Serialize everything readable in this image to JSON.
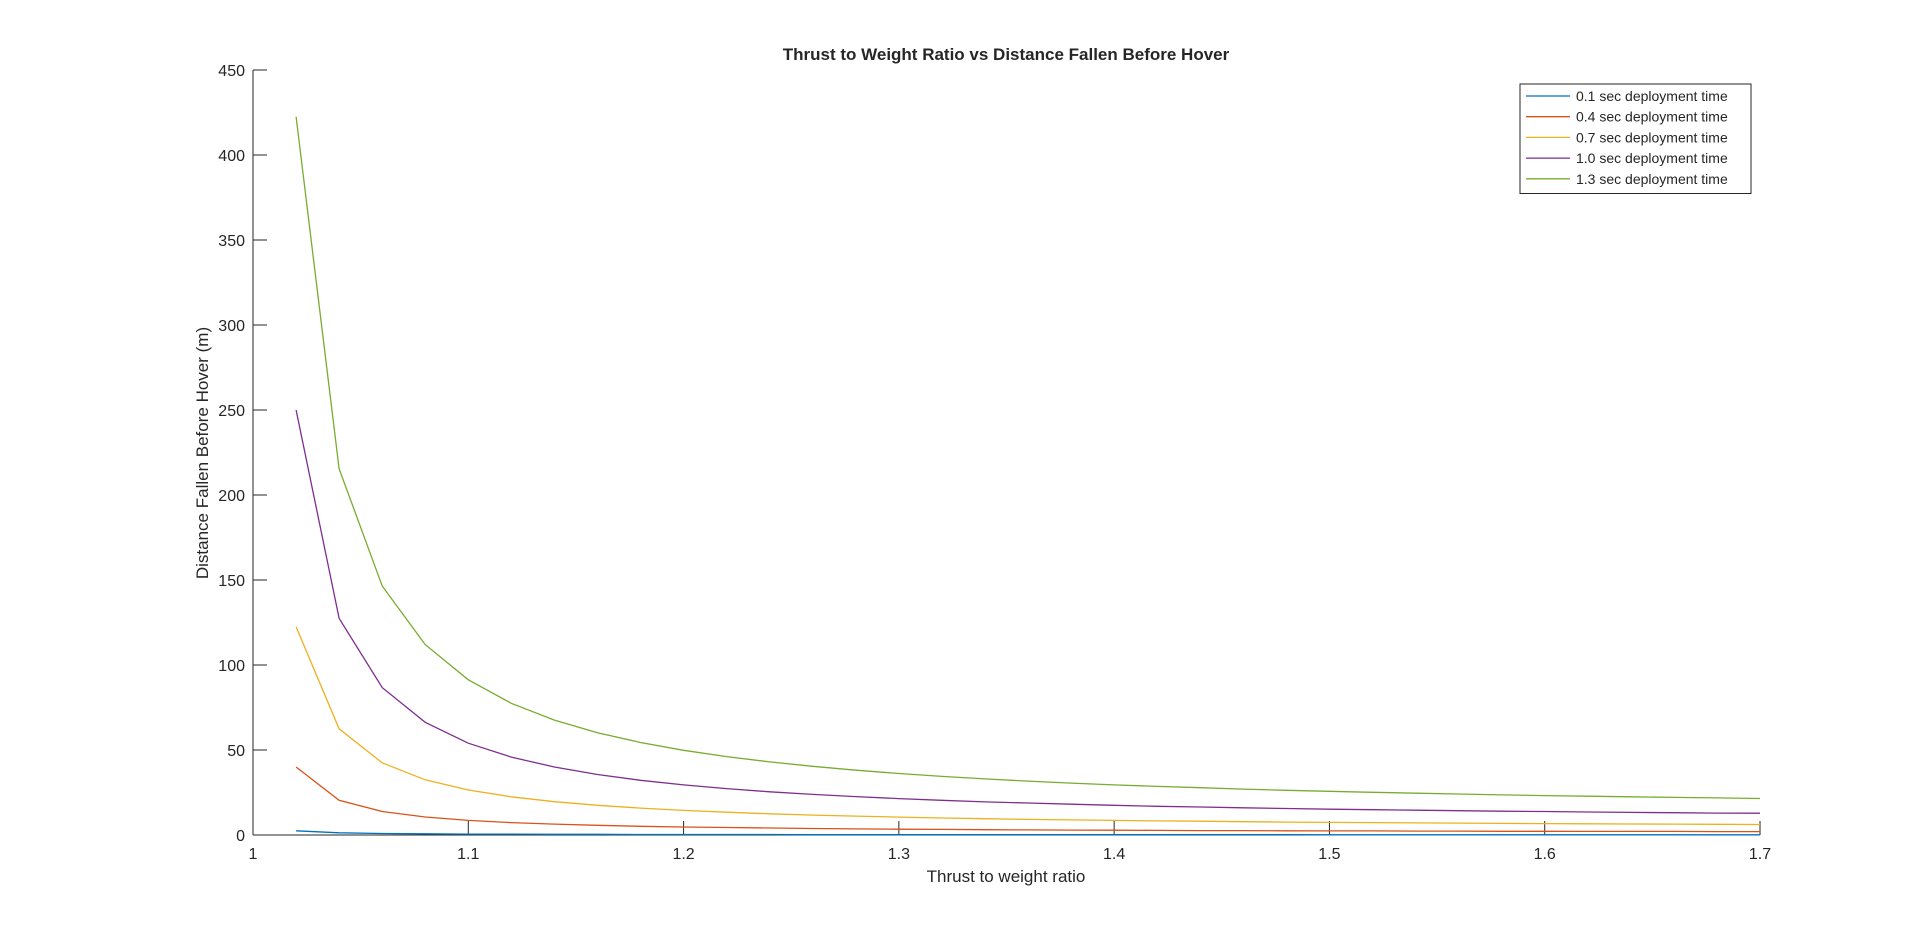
{
  "chart_data": {
    "type": "line",
    "title": "Thrust to Weight Ratio vs Distance Fallen Before Hover",
    "xlabel": "Thrust to weight ratio",
    "ylabel": "Distance Fallen Before Hover (m)",
    "xlim": [
      1,
      1.7
    ],
    "ylim": [
      0,
      450
    ],
    "xticks": [
      1,
      1.1,
      1.2,
      1.3,
      1.4,
      1.5,
      1.6,
      1.7
    ],
    "xtick_labels": [
      "1",
      "1.1",
      "1.2",
      "1.3",
      "1.4",
      "1.5",
      "1.6",
      "1.7"
    ],
    "yticks": [
      0,
      50,
      100,
      150,
      200,
      250,
      300,
      350,
      400,
      450
    ],
    "ytick_labels": [
      "0",
      "50",
      "100",
      "150",
      "200",
      "250",
      "300",
      "350",
      "400",
      "450"
    ],
    "grid": false,
    "legend_position": "top-right",
    "x": [
      1.02,
      1.04,
      1.06,
      1.08,
      1.1,
      1.12,
      1.14,
      1.16,
      1.18,
      1.2,
      1.22,
      1.24,
      1.26,
      1.28,
      1.3,
      1.32,
      1.34,
      1.36,
      1.38,
      1.4,
      1.42,
      1.44,
      1.46,
      1.48,
      1.5,
      1.52,
      1.54,
      1.56,
      1.58,
      1.6,
      1.62,
      1.64,
      1.66,
      1.68,
      1.7
    ],
    "series": [
      {
        "name": "0.1 sec deployment time",
        "color": "#0072BD",
        "values": [
          2.5,
          1.3,
          0.9,
          0.7,
          0.5,
          0.5,
          0.4,
          0.4,
          0.3,
          0.3,
          0.3,
          0.3,
          0.2,
          0.2,
          0.2,
          0.2,
          0.2,
          0.2,
          0.2,
          0.2,
          0.2,
          0.2,
          0.2,
          0.2,
          0.1,
          0.1,
          0.1,
          0.1,
          0.1,
          0.1,
          0.1,
          0.1,
          0.1,
          0.1,
          0.1
        ]
      },
      {
        "name": "0.4 sec deployment time",
        "color": "#D95319",
        "values": [
          40.0,
          20.4,
          13.8,
          10.6,
          8.6,
          7.3,
          6.4,
          5.7,
          5.1,
          4.7,
          4.4,
          4.1,
          3.8,
          3.6,
          3.4,
          3.3,
          3.1,
          3.0,
          2.9,
          2.8,
          2.7,
          2.6,
          2.6,
          2.5,
          2.4,
          2.4,
          2.3,
          2.3,
          2.2,
          2.2,
          2.1,
          2.1,
          2.1,
          2.0,
          2.0
        ]
      },
      {
        "name": "0.7 sec deployment time",
        "color": "#EDB120",
        "values": [
          122.5,
          62.5,
          42.5,
          32.5,
          26.5,
          22.5,
          19.6,
          17.5,
          15.8,
          14.5,
          13.4,
          12.5,
          11.7,
          11.1,
          10.5,
          10.0,
          9.6,
          9.2,
          8.9,
          8.6,
          8.3,
          8.1,
          7.8,
          7.6,
          7.4,
          7.3,
          7.1,
          7.0,
          6.8,
          6.7,
          6.6,
          6.5,
          6.4,
          6.3,
          6.2
        ]
      },
      {
        "name": "1.0 sec deployment time",
        "color": "#7E2F8E",
        "values": [
          250.0,
          127.5,
          86.7,
          66.3,
          54.0,
          45.8,
          40.0,
          35.6,
          32.2,
          29.5,
          27.3,
          25.4,
          23.9,
          22.6,
          21.4,
          20.4,
          19.5,
          18.8,
          18.1,
          17.5,
          16.9,
          16.5,
          16.0,
          15.6,
          15.2,
          14.9,
          14.6,
          14.3,
          14.0,
          13.8,
          13.5,
          13.3,
          13.1,
          12.9,
          12.8
        ]
      },
      {
        "name": "1.3 sec deployment time",
        "color": "#77AC30",
        "values": [
          422.5,
          215.5,
          146.5,
          112.0,
          91.3,
          77.5,
          67.6,
          60.2,
          54.4,
          49.8,
          46.1,
          43.0,
          40.4,
          38.1,
          36.2,
          34.5,
          33.0,
          31.7,
          30.5,
          29.5,
          28.6,
          27.8,
          27.0,
          26.3,
          25.7,
          25.1,
          24.6,
          24.1,
          23.6,
          23.2,
          22.8,
          22.5,
          22.1,
          21.8,
          21.5
        ]
      }
    ]
  }
}
